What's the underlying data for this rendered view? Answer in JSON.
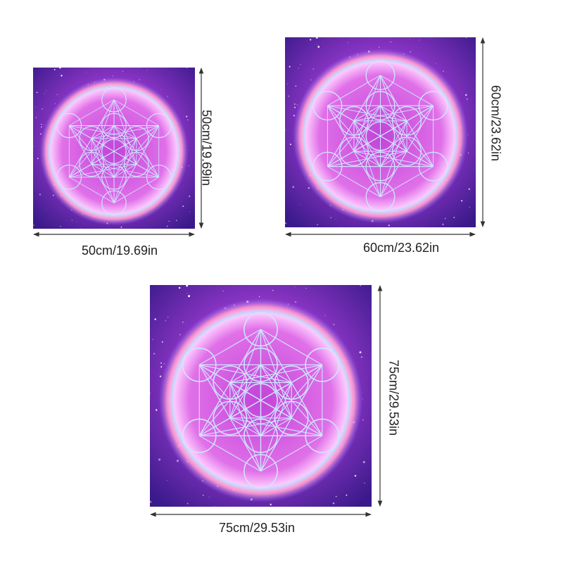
{
  "items": [
    {
      "width_label": "50cm/19.69in",
      "height_label": "50cm/19.69in"
    },
    {
      "width_label": "60cm/23.62in",
      "height_label": "60cm/23.62in"
    },
    {
      "width_label": "75cm/29.53in",
      "height_label": "75cm/29.53in"
    }
  ]
}
